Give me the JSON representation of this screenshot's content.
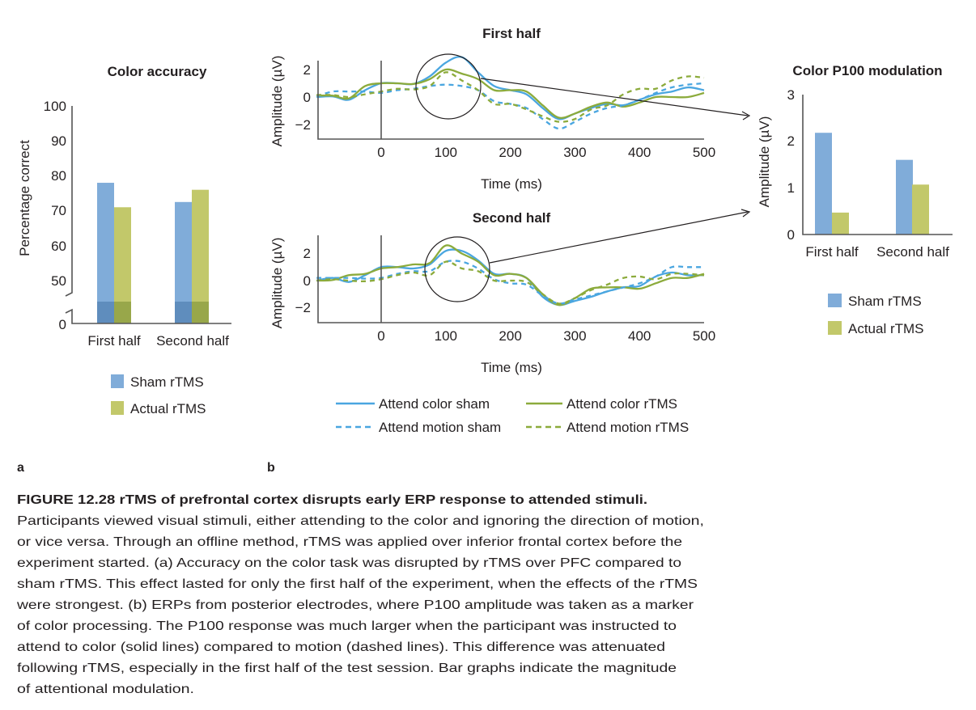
{
  "colors": {
    "sham_bar": "#80acd9",
    "actual_bar": "#c2c86a",
    "sham_bar_dark": "#5f8dbd",
    "actual_bar_dark": "#98a74a",
    "sham_line": "#4aa6e0",
    "rtms_line": "#8cab3c"
  },
  "panel_labels": {
    "a": "a",
    "b": "b"
  },
  "chart_data": [
    {
      "type": "bar",
      "title": "Color accuracy",
      "ylabel": "Percentage correct",
      "xlabel": "",
      "categories": [
        "First half",
        "Second half"
      ],
      "yticks": [
        "100",
        "90",
        "80",
        "70",
        "60",
        "50",
        "0"
      ],
      "ylim": [
        0,
        100
      ],
      "axis_break": [
        0,
        50
      ],
      "series": [
        {
          "name": "Sham rTMS",
          "values": [
            78,
            72.5
          ]
        },
        {
          "name": "Actual rTMS",
          "values": [
            71,
            76
          ]
        }
      ],
      "legend": [
        "Sham rTMS",
        "Actual rTMS"
      ],
      "legend_placement": "bottom"
    },
    {
      "type": "line",
      "title": "First half",
      "xlabel": "Time (ms)",
      "ylabel": "Amplitude (µV)",
      "xlim": [
        -100,
        500
      ],
      "ylim": [
        -3,
        3.2
      ],
      "xticks": [
        "0",
        "100",
        "200",
        "300",
        "400",
        "500"
      ],
      "yticks": [
        "2",
        "0",
        "−2"
      ],
      "x": [
        -100,
        -75,
        -50,
        -25,
        0,
        25,
        50,
        75,
        100,
        125,
        150,
        175,
        200,
        225,
        250,
        275,
        300,
        325,
        350,
        375,
        400,
        425,
        450,
        475,
        500
      ],
      "series": [
        {
          "name": "Attend color sham",
          "values": [
            0,
            0.05,
            -0.2,
            0.5,
            1.0,
            1.0,
            0.95,
            1.5,
            2.5,
            2.9,
            1.8,
            0.8,
            0.5,
            0.2,
            -0.8,
            -1.6,
            -1.2,
            -0.8,
            -0.5,
            -0.6,
            -0.2,
            0.2,
            0.4,
            0.7,
            0.5
          ]
        },
        {
          "name": "Attend color rTMS",
          "values": [
            0.1,
            0.1,
            -0.1,
            0.8,
            1.0,
            1.0,
            0.95,
            1.3,
            2.0,
            1.7,
            1.3,
            0.5,
            0.5,
            0.4,
            -0.6,
            -1.5,
            -1.2,
            -0.7,
            -0.4,
            -0.7,
            -0.4,
            0.0,
            0.0,
            0.0,
            0.3
          ]
        },
        {
          "name": "Attend motion sham",
          "values": [
            0.05,
            0.4,
            0.4,
            0.4,
            0.3,
            0.5,
            0.6,
            0.8,
            0.9,
            0.8,
            0.5,
            -0.3,
            -0.5,
            -0.8,
            -1.6,
            -2.3,
            -1.8,
            -1.2,
            -0.8,
            -0.6,
            -0.2,
            0.3,
            0.7,
            0.9,
            1.0
          ]
        },
        {
          "name": "Attend motion rTMS",
          "values": [
            0.15,
            0.15,
            0.0,
            0.2,
            0.4,
            0.6,
            0.55,
            0.8,
            1.8,
            1.2,
            0.5,
            -0.5,
            -0.5,
            -0.9,
            -1.4,
            -1.8,
            -1.6,
            -0.9,
            -0.6,
            0.2,
            0.6,
            0.6,
            1.2,
            1.5,
            1.4
          ]
        }
      ]
    },
    {
      "type": "line",
      "title": "Second half",
      "xlabel": "Time (ms)",
      "ylabel": "Amplitude (µV)",
      "xlim": [
        -100,
        500
      ],
      "ylim": [
        -3,
        3.2
      ],
      "xticks": [
        "0",
        "100",
        "200",
        "300",
        "400",
        "500"
      ],
      "yticks": [
        "2",
        "0",
        "−2"
      ],
      "x": [
        -100,
        -75,
        -50,
        -25,
        0,
        25,
        50,
        75,
        100,
        125,
        150,
        175,
        200,
        225,
        250,
        275,
        300,
        325,
        350,
        375,
        400,
        425,
        450,
        475,
        500
      ],
      "series": [
        {
          "name": "Attend color sham",
          "values": [
            0,
            0.2,
            -0.1,
            0.4,
            1.0,
            1.0,
            0.9,
            1.2,
            2.2,
            2.2,
            1.5,
            0.5,
            0.5,
            0.2,
            -1.2,
            -1.8,
            -1.5,
            -1.2,
            -0.8,
            -0.5,
            -0.4,
            0.3,
            0.6,
            0.4,
            0.4
          ]
        },
        {
          "name": "Attend color rTMS",
          "values": [
            0,
            0.05,
            0.4,
            0.5,
            0.9,
            1.0,
            1.2,
            1.3,
            2.6,
            2.0,
            1.4,
            0.4,
            0.5,
            0.2,
            -1.0,
            -1.8,
            -1.3,
            -0.6,
            -0.5,
            -0.5,
            -0.6,
            -0.2,
            0.2,
            0.2,
            0.5
          ]
        },
        {
          "name": "Attend motion sham",
          "values": [
            0.2,
            0.2,
            0.2,
            0.15,
            0.2,
            0.5,
            0.7,
            0.7,
            1.4,
            1.4,
            0.9,
            0.1,
            -0.2,
            -0.3,
            -1.1,
            -1.7,
            -1.4,
            -1.1,
            -0.8,
            -0.5,
            -0.2,
            0.3,
            1.0,
            1.0,
            1.0
          ]
        },
        {
          "name": "Attend motion rTMS",
          "values": [
            0,
            0.1,
            0.0,
            -0.05,
            0.1,
            0.4,
            0.6,
            0.4,
            1.4,
            0.9,
            0.7,
            0.0,
            0.0,
            -0.1,
            -1.0,
            -1.7,
            -1.3,
            -0.7,
            -0.3,
            0.2,
            0.3,
            0.1,
            0.5,
            0.5,
            0.4
          ]
        }
      ],
      "legend": [
        "Attend color sham",
        "Attend color rTMS",
        "Attend motion sham",
        "Attend motion rTMS"
      ],
      "legend_placement": "bottom"
    },
    {
      "type": "bar",
      "title": "Color P100 modulation",
      "ylabel": "Amplitude (µV)",
      "xlabel": "",
      "categories": [
        "First half",
        "Second half"
      ],
      "yticks": [
        "3",
        "2",
        "1",
        "0"
      ],
      "ylim": [
        0,
        3
      ],
      "series": [
        {
          "name": "Sham rTMS",
          "values": [
            2.18,
            1.6
          ]
        },
        {
          "name": "Actual rTMS",
          "values": [
            0.47,
            1.07
          ]
        }
      ],
      "legend": [
        "Sham rTMS",
        "Actual rTMS"
      ],
      "legend_placement": "bottom"
    }
  ],
  "caption": {
    "heading": "FIGURE 12.28  rTMS of prefrontal cortex disrupts early ERP response to attended stimuli.",
    "lines": [
      "Participants viewed visual stimuli, either attending to the color and ignoring the direction of motion,",
      "or vice versa. Through an offline method, rTMS was applied over inferior frontal cortex before the",
      "experiment started. (a) Accuracy on the color task was disrupted by rTMS over PFC compared to",
      "sham rTMS. This effect lasted for only the first half of the experiment, when the effects of the rTMS",
      "were strongest. (b) ERPs from posterior electrodes, where P100 amplitude was taken as a marker",
      "of color processing. The P100 response was much larger when the participant was instructed to",
      "attend to color (solid lines) compared to motion (dashed lines). This difference was attenuated",
      "following rTMS, especially in the first half of the test session. Bar graphs indicate the magnitude",
      "of attentional modulation."
    ]
  }
}
